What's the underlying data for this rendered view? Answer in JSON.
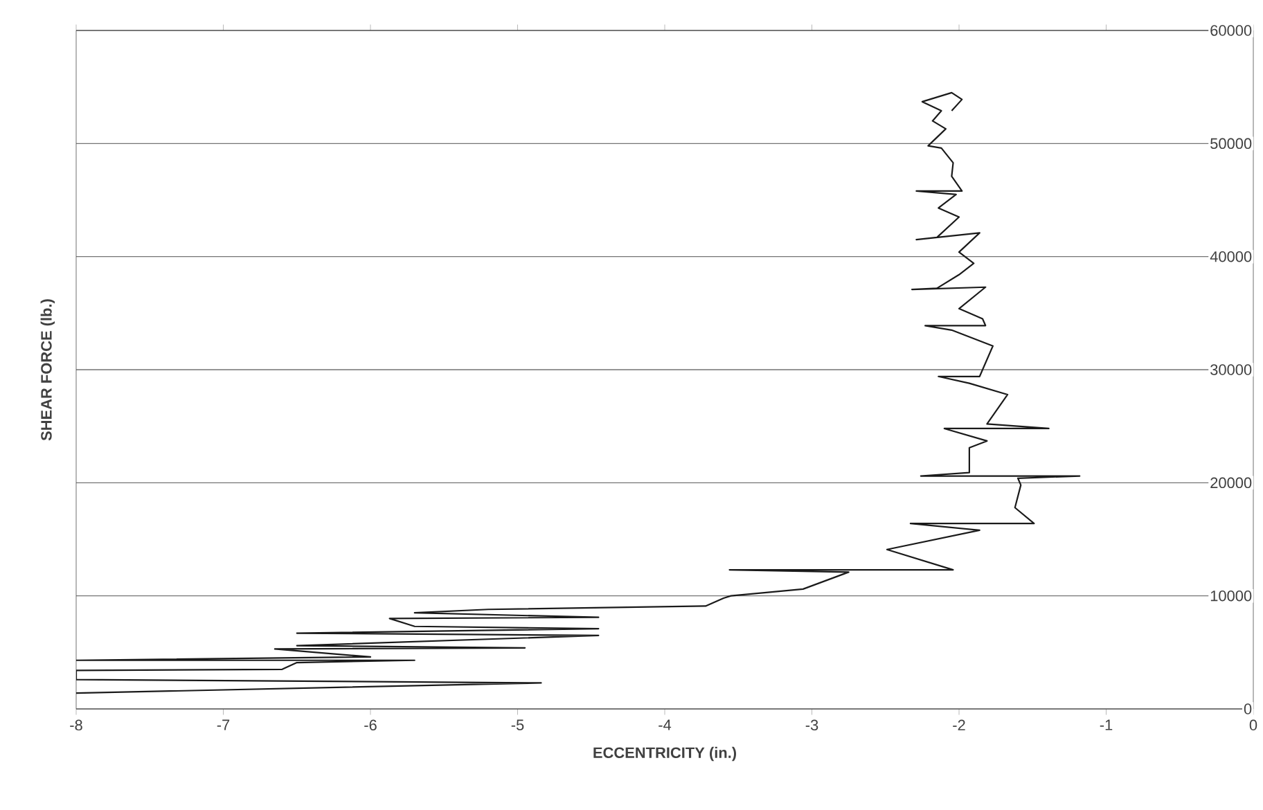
{
  "chart_data": {
    "type": "line",
    "xlabel": "ECCENTRICITY (in.)",
    "ylabel": "SHEAR FORCE (lb.)",
    "xlim": [
      -8,
      0
    ],
    "ylim": [
      0,
      60000
    ],
    "xticks": [
      -8,
      -7,
      -6,
      -5,
      -4,
      -3,
      -2,
      -1,
      0
    ],
    "yticks": [
      0,
      10000,
      20000,
      30000,
      40000,
      50000,
      60000
    ],
    "grid": "y",
    "series": [
      {
        "color": "#1a1a1a",
        "x": [
          -8,
          -4.84,
          -8,
          -8,
          -6.6,
          -6.5,
          -5.7,
          -8,
          -6.0,
          -6.65,
          -4.95,
          -6.5,
          -4.45,
          -6.5,
          -4.45,
          -5.7,
          -5.87,
          -4.45,
          -5.7,
          -5.2,
          -3.72,
          -3.6,
          -3.55,
          -3.06,
          -2.75,
          -3.56,
          -2.04,
          -2.49,
          -1.86,
          -2.33,
          -1.49,
          -1.62,
          -1.58,
          -1.6,
          -1.18,
          -2.26,
          -1.93,
          -1.93,
          -1.81,
          -2.1,
          -1.39,
          -1.81,
          -1.67,
          -1.93,
          -2.14,
          -1.86,
          -1.77,
          -2.05,
          -2.23,
          -1.82,
          -1.84,
          -2.0,
          -1.82,
          -2.32,
          -2.15,
          -2.0,
          -1.9,
          -2.0,
          -1.86,
          -2.29,
          -2.15,
          -2.0,
          -2.14,
          -2.02,
          -2.29,
          -1.98,
          -2.05,
          -2.04,
          -2.12,
          -2.21,
          -2.09,
          -2.18,
          -2.12,
          -2.25,
          -2.05,
          -1.98,
          -2.05
        ],
        "values": [
          1400,
          2300,
          2600,
          3400,
          3500,
          4100,
          4300,
          4300,
          4600,
          5300,
          5400,
          5600,
          6500,
          6700,
          7100,
          7300,
          8000,
          8100,
          8500,
          8800,
          9100,
          9800,
          10000,
          10600,
          12100,
          12300,
          12300,
          14100,
          15800,
          16400,
          16400,
          17800,
          19800,
          20400,
          20600,
          20600,
          20900,
          23100,
          23700,
          24800,
          24800,
          25200,
          27800,
          28800,
          29400,
          29400,
          32100,
          33500,
          33900,
          33900,
          34500,
          35400,
          37300,
          37100,
          37200,
          38400,
          39400,
          40400,
          42100,
          41500,
          41700,
          43500,
          44300,
          45500,
          45800,
          45800,
          47100,
          48300,
          49600,
          49800,
          51300,
          52000,
          52900,
          53700,
          54500,
          53900,
          52900
        ]
      }
    ]
  }
}
